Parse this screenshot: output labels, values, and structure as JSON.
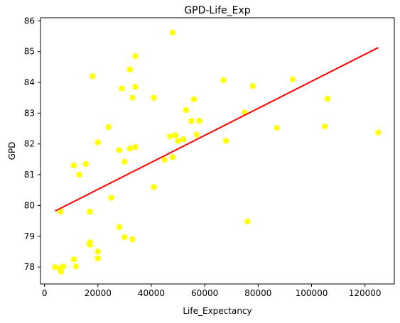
{
  "chart_data": {
    "type": "scatter",
    "title": "GPD-Life_Exp",
    "xlabel": "Life_Expectancy",
    "ylabel": "GPD",
    "xlim": [
      -1500,
      131000
    ],
    "ylim": [
      77.45,
      86.1
    ],
    "xticks": [
      0,
      20000,
      40000,
      60000,
      80000,
      100000,
      120000
    ],
    "xtick_labels": [
      "0",
      "20000",
      "40000",
      "60000",
      "80000",
      "100000",
      "120000"
    ],
    "yticks": [
      78,
      79,
      80,
      81,
      82,
      83,
      84,
      85,
      86
    ],
    "ytick_labels": [
      "78",
      "79",
      "80",
      "81",
      "82",
      "83",
      "84",
      "85",
      "86"
    ],
    "grid": false,
    "colors": {
      "points": "#ffff00",
      "line": "#ff0000"
    },
    "series": [
      {
        "kind": "scatter",
        "points": [
          [
            4000,
            78.0
          ],
          [
            5800,
            77.95
          ],
          [
            6200,
            77.85
          ],
          [
            7000,
            78.02
          ],
          [
            6000,
            79.8
          ],
          [
            11000,
            78.25
          ],
          [
            11800,
            78.02
          ],
          [
            11000,
            81.3
          ],
          [
            13000,
            81.0
          ],
          [
            15500,
            81.35
          ],
          [
            17000,
            79.8
          ],
          [
            17000,
            78.8
          ],
          [
            17000,
            78.72
          ],
          [
            20000,
            78.5
          ],
          [
            20000,
            78.28
          ],
          [
            18000,
            84.2
          ],
          [
            20000,
            82.05
          ],
          [
            24000,
            82.55
          ],
          [
            25000,
            80.25
          ],
          [
            28000,
            79.3
          ],
          [
            28000,
            81.8
          ],
          [
            29000,
            83.8
          ],
          [
            30000,
            81.42
          ],
          [
            30000,
            78.97
          ],
          [
            32000,
            84.42
          ],
          [
            32000,
            81.85
          ],
          [
            33000,
            83.5
          ],
          [
            33000,
            78.9
          ],
          [
            34000,
            84.85
          ],
          [
            34000,
            83.85
          ],
          [
            34000,
            81.9
          ],
          [
            41000,
            80.6
          ],
          [
            41000,
            83.5
          ],
          [
            45000,
            81.48
          ],
          [
            47000,
            82.25
          ],
          [
            48000,
            85.62
          ],
          [
            48000,
            81.57
          ],
          [
            49000,
            82.28
          ],
          [
            50000,
            82.1
          ],
          [
            52000,
            82.15
          ],
          [
            53000,
            83.1
          ],
          [
            55000,
            82.75
          ],
          [
            56000,
            83.45
          ],
          [
            57000,
            82.3
          ],
          [
            58000,
            82.75
          ],
          [
            67000,
            84.07
          ],
          [
            68000,
            82.1
          ],
          [
            75000,
            83.02
          ],
          [
            76000,
            79.48
          ],
          [
            78000,
            83.88
          ],
          [
            87000,
            82.52
          ],
          [
            93000,
            84.1
          ],
          [
            105000,
            82.57
          ],
          [
            106000,
            83.47
          ],
          [
            125000,
            82.37
          ]
        ]
      },
      {
        "kind": "line",
        "points": [
          [
            4000,
            79.82
          ],
          [
            125000,
            85.13
          ]
        ]
      }
    ]
  }
}
